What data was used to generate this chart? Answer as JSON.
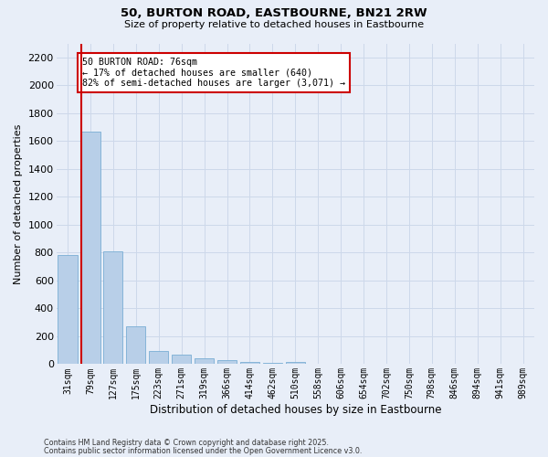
{
  "title_line1": "50, BURTON ROAD, EASTBOURNE, BN21 2RW",
  "title_line2": "Size of property relative to detached houses in Eastbourne",
  "xlabel": "Distribution of detached houses by size in Eastbourne",
  "ylabel": "Number of detached properties",
  "categories": [
    "31sqm",
    "79sqm",
    "127sqm",
    "175sqm",
    "223sqm",
    "271sqm",
    "319sqm",
    "366sqm",
    "414sqm",
    "462sqm",
    "510sqm",
    "558sqm",
    "606sqm",
    "654sqm",
    "702sqm",
    "750sqm",
    "798sqm",
    "846sqm",
    "894sqm",
    "941sqm",
    "989sqm"
  ],
  "values": [
    780,
    1670,
    810,
    270,
    95,
    65,
    45,
    28,
    18,
    10,
    18,
    5,
    0,
    0,
    0,
    0,
    0,
    0,
    0,
    0,
    0
  ],
  "bar_color": "#b8cfe8",
  "bar_edge_color": "#7aadd4",
  "vline_color": "#cc0000",
  "vline_x": 0.6,
  "annotation_text": "50 BURTON ROAD: 76sqm\n← 17% of detached houses are smaller (640)\n82% of semi-detached houses are larger (3,071) →",
  "annotation_box_color": "#ffffff",
  "annotation_box_edge": "#cc0000",
  "ylim": [
    0,
    2300
  ],
  "yticks": [
    0,
    200,
    400,
    600,
    800,
    1000,
    1200,
    1400,
    1600,
    1800,
    2000,
    2200
  ],
  "grid_color": "#cdd8ea",
  "background_color": "#e8eef8",
  "footer_line1": "Contains HM Land Registry data © Crown copyright and database right 2025.",
  "footer_line2": "Contains public sector information licensed under the Open Government Licence v3.0."
}
